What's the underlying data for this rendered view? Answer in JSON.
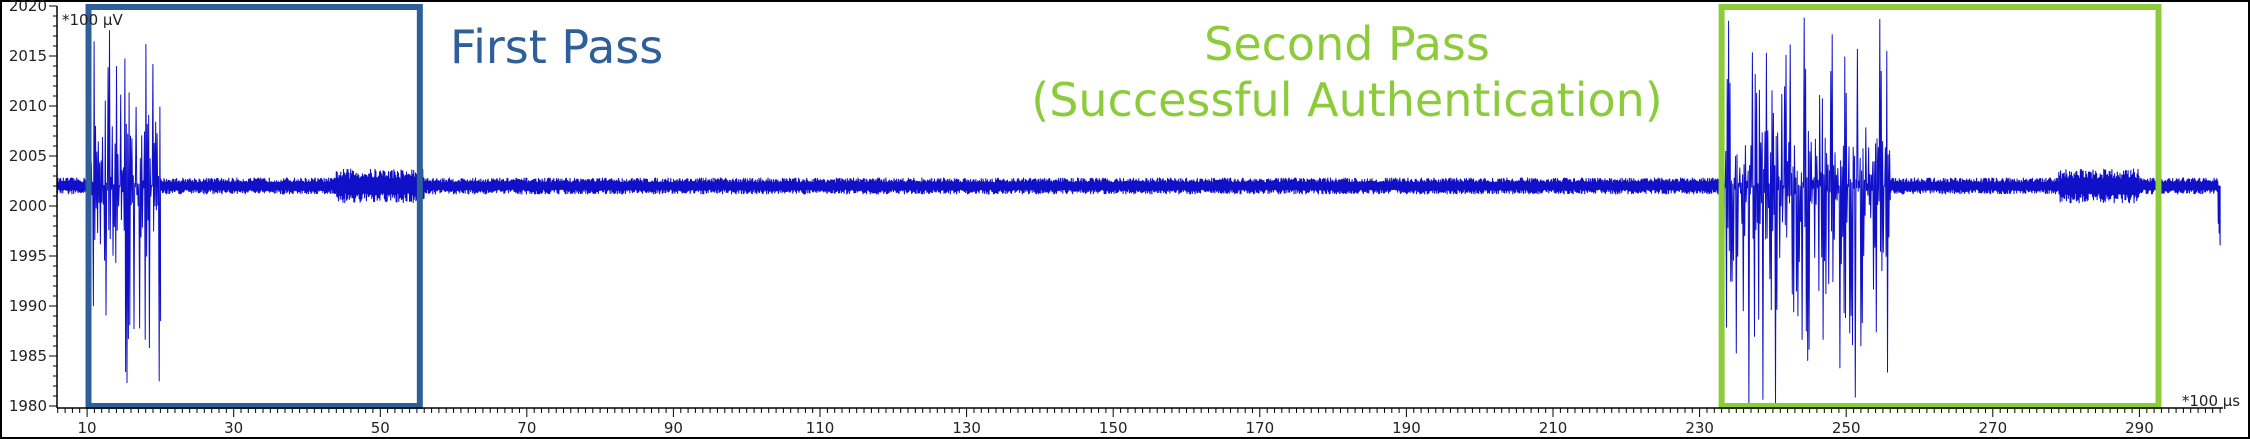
{
  "chart_data": {
    "type": "line",
    "title": "",
    "xlabel": "",
    "ylabel": "",
    "x_unit": "*100 µs",
    "y_unit": "*100 µV",
    "xlim": [
      5.9,
      301.4
    ],
    "ylim": [
      1979.8,
      2020
    ],
    "x_ticks": [
      10,
      30,
      50,
      70,
      90,
      110,
      130,
      150,
      170,
      190,
      210,
      230,
      250,
      270,
      290
    ],
    "y_ticks": [
      1980,
      1985,
      1990,
      1995,
      2000,
      2005,
      2010,
      2015,
      2020
    ],
    "grid": false,
    "series": [
      {
        "color": "#1010c8",
        "baseline": 2002,
        "segments": [
          {
            "x": [
              5.9,
              10
            ],
            "min": 2001.2,
            "max": 2002.8
          },
          {
            "x": [
              10,
              20
            ],
            "min": 1980.4,
            "max": 2019.5
          },
          {
            "x": [
              20,
              44
            ],
            "min": 2001.2,
            "max": 2002.8
          },
          {
            "x": [
              44,
              56
            ],
            "min": 2000.3,
            "max": 2003.7
          },
          {
            "x": [
              56,
              233
            ],
            "min": 2001.2,
            "max": 2002.8
          },
          {
            "x": [
              233,
              256
            ],
            "min": 1979.8,
            "max": 2019.0
          },
          {
            "x": [
              256,
              279
            ],
            "min": 2001.2,
            "max": 2002.8
          },
          {
            "x": [
              279,
              290
            ],
            "min": 2000.3,
            "max": 2003.7
          },
          {
            "x": [
              290,
              300.7
            ],
            "min": 2001.2,
            "max": 2002.8
          },
          {
            "x": [
              300.7,
              301.0
            ],
            "min": 1996.0,
            "max": 2002.0
          }
        ]
      }
    ],
    "annotations": [
      {
        "text_lines": [
          "First Pass"
        ],
        "color": "#2e5f99",
        "box_x": [
          10.2,
          55.4
        ],
        "box_y": [
          1980.0,
          2019.9
        ]
      },
      {
        "text_lines": [
          "Second Pass",
          "(Successful Authentication)"
        ],
        "color": "#8ccc3a",
        "box_x": [
          233.0,
          292.6
        ],
        "box_y": [
          1980.0,
          2019.9
        ]
      }
    ]
  }
}
